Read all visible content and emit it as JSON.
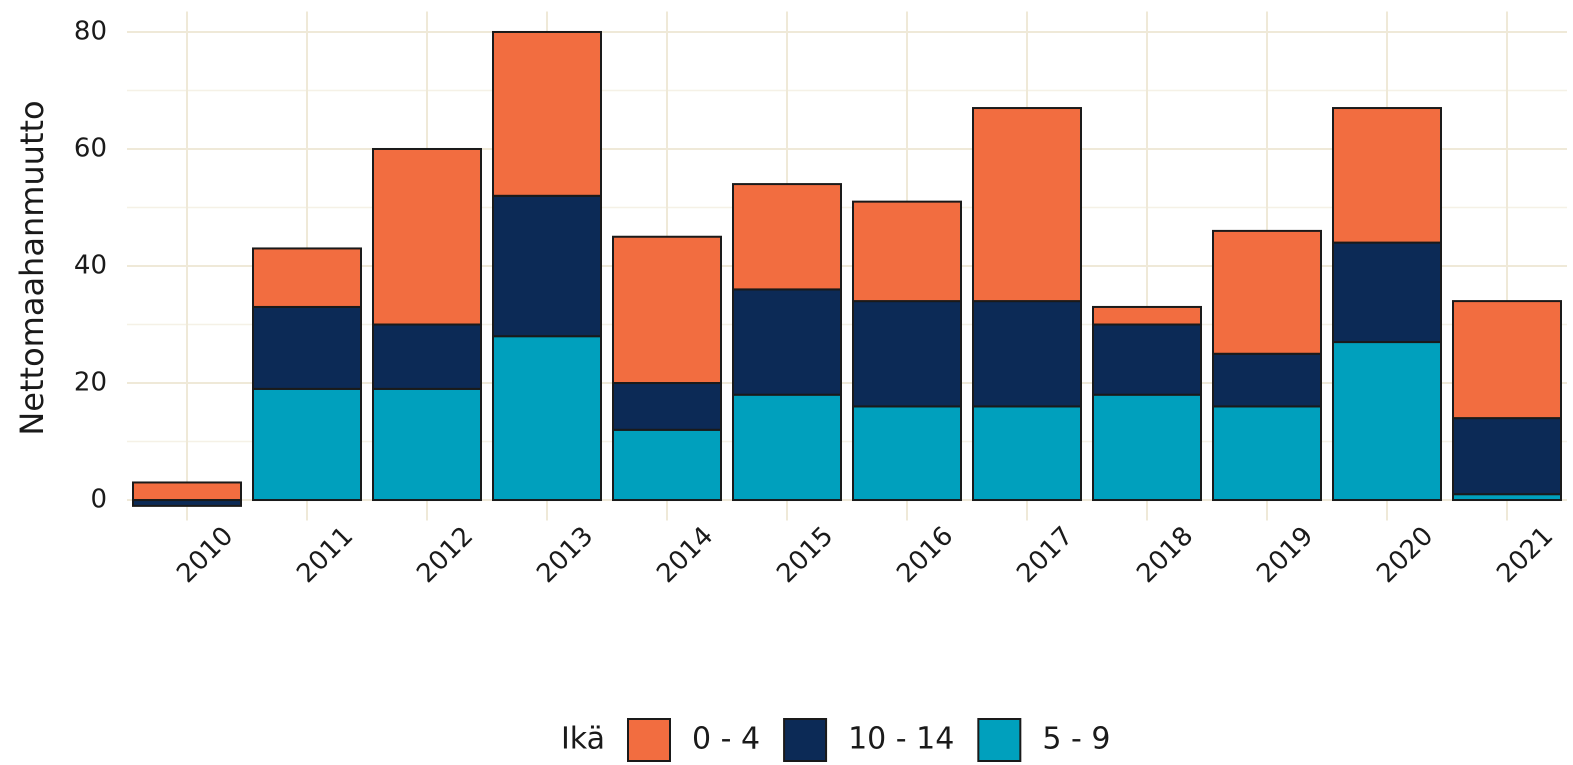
{
  "chart_data": {
    "type": "stacked_bar",
    "y_label": "Nettomaahanmuutto",
    "legend_title": "Ikä",
    "categories": [
      "2010",
      "2011",
      "2012",
      "2013",
      "2014",
      "2015",
      "2016",
      "2017",
      "2018",
      "2019",
      "2020",
      "2021"
    ],
    "series": [
      {
        "name": "0 - 4",
        "color": "#f26d40",
        "values": [
          3,
          10,
          30,
          28,
          25,
          18,
          17,
          33,
          3,
          21,
          23,
          20
        ]
      },
      {
        "name": "10 - 14",
        "color": "#0c2a56",
        "values": [
          -1,
          14,
          11,
          24,
          8,
          18,
          18,
          18,
          12,
          9,
          17,
          13
        ]
      },
      {
        "name": "5 - 9",
        "color": "#00a0bd",
        "values": [
          0,
          19,
          19,
          28,
          12,
          18,
          16,
          16,
          18,
          16,
          27,
          1
        ]
      }
    ],
    "ylim": [
      -3.5,
      83.5
    ],
    "yticks": [
      0,
      20,
      40,
      60,
      80
    ],
    "minor_yticks": [
      10,
      30,
      50,
      70
    ],
    "grid": true,
    "legend": "bottom"
  }
}
